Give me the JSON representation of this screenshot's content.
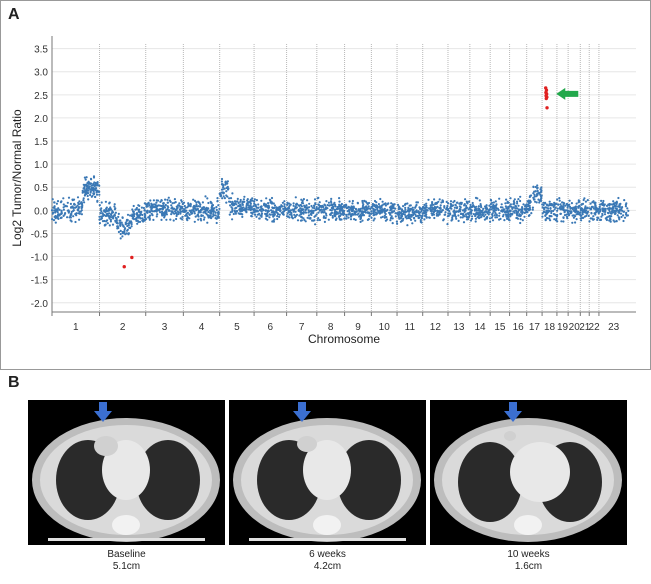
{
  "panel_a_label": "A",
  "panel_b_label": "B",
  "chart_data": {
    "type": "scatter",
    "ylabel": "Log2 Tumor/Normal Ratio",
    "xlabel": "Chromosome",
    "ylim": [
      -2.2,
      3.6
    ],
    "yticks": [
      3.5,
      3.0,
      2.5,
      2.0,
      1.5,
      1.0,
      0.5,
      0.0,
      -0.5,
      -1.0,
      -1.5,
      -2.0
    ],
    "grid": true,
    "chromosomes": [
      {
        "label": "1",
        "start": 0,
        "end": 250,
        "base": 0.02
      },
      {
        "label": "2",
        "start": 250,
        "end": 493,
        "base": -0.1
      },
      {
        "label": "3",
        "start": 493,
        "end": 691,
        "base": 0.02
      },
      {
        "label": "4",
        "start": 691,
        "end": 882,
        "base": 0.0
      },
      {
        "label": "5",
        "start": 882,
        "end": 1063,
        "base": 0.08
      },
      {
        "label": "6",
        "start": 1063,
        "end": 1234,
        "base": 0.0
      },
      {
        "label": "7",
        "start": 1234,
        "end": 1393,
        "base": 0.0
      },
      {
        "label": "8",
        "start": 1393,
        "end": 1539,
        "base": 0.0
      },
      {
        "label": "9",
        "start": 1539,
        "end": 1680,
        "base": 0.0
      },
      {
        "label": "10",
        "start": 1680,
        "end": 1815,
        "base": 0.0
      },
      {
        "label": "11",
        "start": 1815,
        "end": 1950,
        "base": -0.05
      },
      {
        "label": "12",
        "start": 1950,
        "end": 2083,
        "base": 0.0
      },
      {
        "label": "13",
        "start": 2083,
        "end": 2198,
        "base": 0.0
      },
      {
        "label": "14",
        "start": 2198,
        "end": 2305,
        "base": 0.0
      },
      {
        "label": "15",
        "start": 2305,
        "end": 2407,
        "base": 0.0
      },
      {
        "label": "16",
        "start": 2407,
        "end": 2497,
        "base": 0.0
      },
      {
        "label": "17",
        "start": 2497,
        "end": 2578,
        "base": 0.08
      },
      {
        "label": "18",
        "start": 2578,
        "end": 2656,
        "base": 0.0
      },
      {
        "label": "19",
        "start": 2656,
        "end": 2715,
        "base": 0.0
      },
      {
        "label": "20",
        "start": 2715,
        "end": 2779,
        "base": 0.0
      },
      {
        "label": "21",
        "start": 2779,
        "end": 2826,
        "base": 0.0
      },
      {
        "label": "22",
        "start": 2826,
        "end": 2877,
        "base": 0.0
      },
      {
        "label": "23",
        "start": 2877,
        "end": 3032,
        "base": 0.0
      }
    ],
    "red_points": [
      {
        "x": 380,
        "y": -1.22
      },
      {
        "x": 420,
        "y": -1.02
      },
      {
        "x": 2597,
        "y": 2.65
      },
      {
        "x": 2598,
        "y": 2.55
      },
      {
        "x": 2599,
        "y": 2.48
      },
      {
        "x": 2600,
        "y": 2.42
      },
      {
        "x": 2601,
        "y": 2.6
      },
      {
        "x": 2602,
        "y": 2.52
      },
      {
        "x": 2603,
        "y": 2.45
      },
      {
        "x": 2604,
        "y": 2.22
      }
    ],
    "annotation_arrow": {
      "color": "#22a84b",
      "points_to": "chromosome 18 amplification"
    }
  },
  "ct_scans": [
    {
      "time": "Baseline",
      "size": "5.1cm"
    },
    {
      "time": "6 weeks",
      "size": "4.2cm"
    },
    {
      "time": "10 weeks",
      "size": "1.6cm"
    }
  ],
  "colors": {
    "points": "#3a78b5",
    "red_points": "#e02020",
    "arrow_b": "#3b6fd1",
    "grid": "#b8b8b8"
  }
}
